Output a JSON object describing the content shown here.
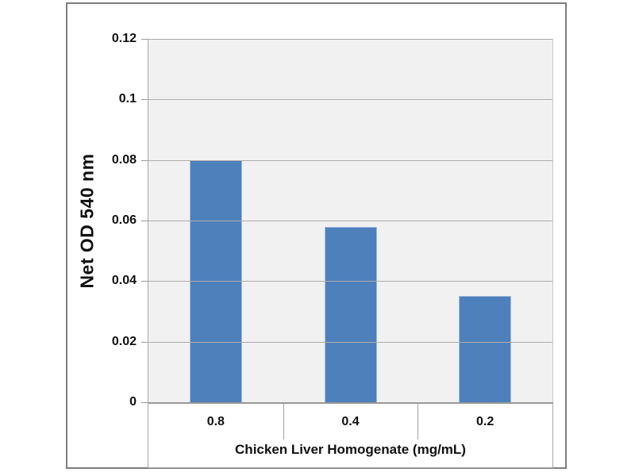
{
  "chart_data": {
    "type": "bar",
    "categories": [
      "0.8",
      "0.4",
      "0.2"
    ],
    "values": [
      0.08,
      0.058,
      0.035
    ],
    "xlabel": "Chicken Liver Homogenate (mg/mL)",
    "ylabel": "Net OD 540 nm",
    "ylim": [
      0,
      0.12
    ],
    "yticks": [
      {
        "value": 0,
        "label": "0"
      },
      {
        "value": 0.02,
        "label": "0.02"
      },
      {
        "value": 0.04,
        "label": "0.04"
      },
      {
        "value": 0.06,
        "label": "0.06"
      },
      {
        "value": 0.08,
        "label": "0.08"
      },
      {
        "value": 0.1,
        "label": "0.1"
      },
      {
        "value": 0.12,
        "label": "0.12"
      }
    ],
    "grid": true,
    "legend_position": "none",
    "colors": {
      "bar_fill": "#4e80bc",
      "bar_edge": "#9fbee2",
      "plot_background": "#f1f1f1",
      "gridline": "#acacac",
      "axis_line": "#989898",
      "frame_border": "#7d7d7d",
      "text": "#111111"
    }
  }
}
